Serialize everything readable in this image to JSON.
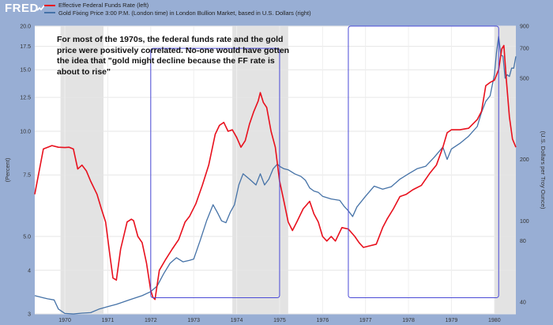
{
  "header": {
    "logo": "FRED",
    "logo_icon": "chart-line-icon"
  },
  "legend": [
    {
      "label": "Effective Federal Funds Rate (left)",
      "color": "#e8101d"
    },
    {
      "label": "Gold Fixing Price 3:00 P.M. (London time) in London Bullion Market, based in U.S. Dollars (right)",
      "color": "#4572a7"
    }
  ],
  "annotation": "For most of the 1970s, the federal funds rate and the gold price were positively correlated. No-one would have gotten the idea that \"gold might decline because the FF rate is about to rise\"",
  "colors": {
    "frame": "#98aed4",
    "plot_bg": "#ffffff",
    "recession": "#e3e3e3",
    "ff_line": "#e8101d",
    "gold_line": "#4572a7",
    "box": "#4a4ad6"
  },
  "chart_data": {
    "type": "line",
    "left_axis": {
      "title": "(Percent)",
      "scale": "log",
      "range": [
        3,
        20
      ],
      "ticks": [
        "3",
        "4",
        "5.0",
        "7.5",
        "10.0",
        "12.5",
        "15.0",
        "17.5",
        "20.0"
      ],
      "tick_values": [
        3,
        4,
        5,
        7.5,
        10,
        12.5,
        15,
        17.5,
        20
      ]
    },
    "right_axis": {
      "title": "(U.S. Dollars per Troy Ounce)",
      "scale": "log",
      "range": [
        35,
        900
      ],
      "ticks": [
        "40",
        "80",
        "100",
        "200",
        "500",
        "700",
        "900"
      ],
      "tick_values": [
        40,
        80,
        100,
        200,
        500,
        700,
        900
      ]
    },
    "x_axis": {
      "range": [
        1969.3,
        1980.5
      ],
      "ticks": [
        "1970",
        "1971",
        "1972",
        "1973",
        "1974",
        "1975",
        "1976",
        "1977",
        "1978",
        "1979",
        "1980"
      ],
      "tick_values": [
        1970,
        1971,
        1972,
        1973,
        1974,
        1975,
        1976,
        1977,
        1978,
        1979,
        1980
      ]
    },
    "recessions": [
      [
        1969.9,
        1970.9
      ],
      [
        1973.9,
        1975.2
      ],
      [
        1980.0,
        1980.5
      ]
    ],
    "series": [
      {
        "name": "Effective Federal Funds Rate (left)",
        "axis": "left",
        "points": [
          [
            1969.3,
            6.6
          ],
          [
            1969.5,
            8.9
          ],
          [
            1969.7,
            9.1
          ],
          [
            1969.85,
            9.0
          ],
          [
            1970.0,
            8.98
          ],
          [
            1970.1,
            9.0
          ],
          [
            1970.2,
            8.9
          ],
          [
            1970.3,
            7.8
          ],
          [
            1970.4,
            8.0
          ],
          [
            1970.5,
            7.7
          ],
          [
            1970.6,
            7.2
          ],
          [
            1970.75,
            6.6
          ],
          [
            1970.85,
            6.0
          ],
          [
            1970.95,
            5.5
          ],
          [
            1971.05,
            4.4
          ],
          [
            1971.12,
            3.8
          ],
          [
            1971.2,
            3.75
          ],
          [
            1971.3,
            4.6
          ],
          [
            1971.45,
            5.5
          ],
          [
            1971.55,
            5.6
          ],
          [
            1971.6,
            5.55
          ],
          [
            1971.7,
            5.0
          ],
          [
            1971.8,
            4.8
          ],
          [
            1971.9,
            4.2
          ],
          [
            1972.0,
            3.5
          ],
          [
            1972.05,
            3.35
          ],
          [
            1972.1,
            3.3
          ],
          [
            1972.2,
            4.0
          ],
          [
            1972.35,
            4.3
          ],
          [
            1972.5,
            4.6
          ],
          [
            1972.65,
            4.9
          ],
          [
            1972.8,
            5.5
          ],
          [
            1972.9,
            5.7
          ],
          [
            1973.05,
            6.2
          ],
          [
            1973.2,
            7.0
          ],
          [
            1973.35,
            8.0
          ],
          [
            1973.5,
            9.8
          ],
          [
            1973.6,
            10.4
          ],
          [
            1973.7,
            10.6
          ],
          [
            1973.8,
            10.0
          ],
          [
            1973.9,
            10.1
          ],
          [
            1974.0,
            9.6
          ],
          [
            1974.1,
            9.0
          ],
          [
            1974.2,
            9.4
          ],
          [
            1974.3,
            10.5
          ],
          [
            1974.4,
            11.4
          ],
          [
            1974.5,
            12.2
          ],
          [
            1974.55,
            12.9
          ],
          [
            1974.62,
            12.1
          ],
          [
            1974.7,
            11.7
          ],
          [
            1974.8,
            10.0
          ],
          [
            1974.9,
            9.0
          ],
          [
            1975.0,
            7.2
          ],
          [
            1975.1,
            6.3
          ],
          [
            1975.2,
            5.5
          ],
          [
            1975.3,
            5.2
          ],
          [
            1975.4,
            5.5
          ],
          [
            1975.55,
            6.0
          ],
          [
            1975.7,
            6.3
          ],
          [
            1975.8,
            5.8
          ],
          [
            1975.9,
            5.5
          ],
          [
            1976.0,
            5.0
          ],
          [
            1976.1,
            4.85
          ],
          [
            1976.2,
            5.0
          ],
          [
            1976.3,
            4.85
          ],
          [
            1976.45,
            5.3
          ],
          [
            1976.6,
            5.25
          ],
          [
            1976.75,
            5.0
          ],
          [
            1976.85,
            4.8
          ],
          [
            1976.95,
            4.65
          ],
          [
            1977.1,
            4.7
          ],
          [
            1977.25,
            4.75
          ],
          [
            1977.4,
            5.3
          ],
          [
            1977.5,
            5.6
          ],
          [
            1977.65,
            6.0
          ],
          [
            1977.8,
            6.5
          ],
          [
            1977.95,
            6.6
          ],
          [
            1978.1,
            6.8
          ],
          [
            1978.3,
            7.0
          ],
          [
            1978.5,
            7.6
          ],
          [
            1978.65,
            8.0
          ],
          [
            1978.8,
            9.0
          ],
          [
            1978.9,
            9.9
          ],
          [
            1979.0,
            10.1
          ],
          [
            1979.2,
            10.1
          ],
          [
            1979.4,
            10.2
          ],
          [
            1979.6,
            10.8
          ],
          [
            1979.7,
            11.4
          ],
          [
            1979.8,
            13.5
          ],
          [
            1979.9,
            13.8
          ],
          [
            1980.0,
            14.0
          ],
          [
            1980.1,
            15.0
          ],
          [
            1980.17,
            17.2
          ],
          [
            1980.22,
            17.6
          ],
          [
            1980.28,
            14.0
          ],
          [
            1980.35,
            11.0
          ],
          [
            1980.42,
            9.5
          ],
          [
            1980.5,
            9.0
          ]
        ]
      },
      {
        "name": "Gold Fixing Price 3:00 P.M. (London time) in London Bullion Market, based in U.S. Dollars (right)",
        "axis": "right",
        "points": [
          [
            1969.3,
            43
          ],
          [
            1969.5,
            42
          ],
          [
            1969.6,
            41.5
          ],
          [
            1969.75,
            41
          ],
          [
            1969.85,
            37
          ],
          [
            1970.0,
            35.2
          ],
          [
            1970.2,
            35.0
          ],
          [
            1970.4,
            35.3
          ],
          [
            1970.6,
            35.5
          ],
          [
            1970.8,
            37
          ],
          [
            1971.0,
            38
          ],
          [
            1971.2,
            39
          ],
          [
            1971.5,
            41
          ],
          [
            1971.8,
            43
          ],
          [
            1972.0,
            45
          ],
          [
            1972.15,
            48
          ],
          [
            1972.3,
            55
          ],
          [
            1972.45,
            62
          ],
          [
            1972.6,
            66
          ],
          [
            1972.75,
            63
          ],
          [
            1972.9,
            64
          ],
          [
            1973.0,
            65
          ],
          [
            1973.15,
            80
          ],
          [
            1973.3,
            100
          ],
          [
            1973.45,
            120
          ],
          [
            1973.55,
            110
          ],
          [
            1973.65,
            100
          ],
          [
            1973.75,
            98
          ],
          [
            1973.85,
            110
          ],
          [
            1973.95,
            120
          ],
          [
            1974.05,
            150
          ],
          [
            1974.15,
            170
          ],
          [
            1974.3,
            160
          ],
          [
            1974.45,
            150
          ],
          [
            1974.55,
            170
          ],
          [
            1974.65,
            150
          ],
          [
            1974.75,
            160
          ],
          [
            1974.85,
            180
          ],
          [
            1974.95,
            190
          ],
          [
            1975.0,
            185
          ],
          [
            1975.1,
            180
          ],
          [
            1975.2,
            178
          ],
          [
            1975.35,
            170
          ],
          [
            1975.5,
            165
          ],
          [
            1975.6,
            158
          ],
          [
            1975.7,
            145
          ],
          [
            1975.8,
            140
          ],
          [
            1975.9,
            138
          ],
          [
            1976.0,
            132
          ],
          [
            1976.2,
            128
          ],
          [
            1976.4,
            126
          ],
          [
            1976.5,
            118
          ],
          [
            1976.6,
            112
          ],
          [
            1976.7,
            105
          ],
          [
            1976.8,
            117
          ],
          [
            1977.0,
            132
          ],
          [
            1977.2,
            148
          ],
          [
            1977.4,
            143
          ],
          [
            1977.6,
            147
          ],
          [
            1977.8,
            160
          ],
          [
            1978.0,
            170
          ],
          [
            1978.2,
            180
          ],
          [
            1978.4,
            185
          ],
          [
            1978.6,
            205
          ],
          [
            1978.8,
            230
          ],
          [
            1978.9,
            200
          ],
          [
            1979.0,
            225
          ],
          [
            1979.2,
            240
          ],
          [
            1979.4,
            260
          ],
          [
            1979.6,
            290
          ],
          [
            1979.7,
            340
          ],
          [
            1979.8,
            385
          ],
          [
            1979.9,
            410
          ],
          [
            1980.0,
            520
          ],
          [
            1980.05,
            670
          ],
          [
            1980.1,
            800
          ],
          [
            1980.15,
            650
          ],
          [
            1980.2,
            640
          ],
          [
            1980.25,
            500
          ],
          [
            1980.3,
            520
          ],
          [
            1980.35,
            510
          ],
          [
            1980.4,
            560
          ],
          [
            1980.45,
            560
          ],
          [
            1980.5,
            640
          ]
        ]
      }
    ],
    "highlight_boxes": [
      [
        1972.0,
        1975.0,
        42,
        700
      ],
      [
        1976.6,
        1980.1,
        42,
        900
      ]
    ]
  }
}
